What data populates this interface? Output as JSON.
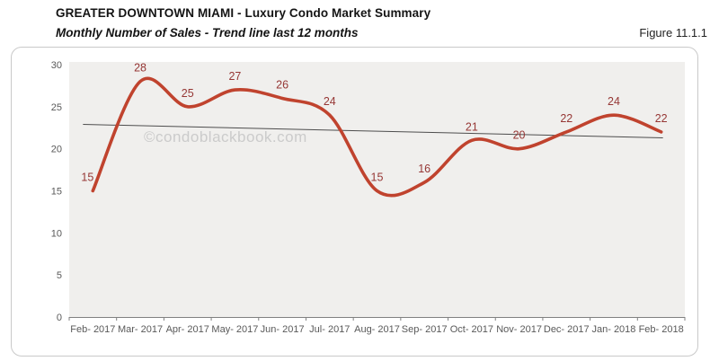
{
  "header": {
    "title": "GREATER DOWNTOWN MIAMI - Luxury Condo Market Summary",
    "subtitle": "Monthly Number of Sales - Trend line last 12 months",
    "figure_label": "Figure 11.1.1"
  },
  "watermark": "©condoblackbook.com",
  "chart_data": {
    "type": "line",
    "title": "Monthly Number of Sales - Trend line last 12 months",
    "categories": [
      "Feb- 2017",
      "Mar- 2017",
      "Apr- 2017",
      "May- 2017",
      "Jun- 2017",
      "Jul- 2017",
      "Aug- 2017",
      "Sep- 2017",
      "Oct- 2017",
      "Nov- 2017",
      "Dec- 2017",
      "Jan- 2018",
      "Feb- 2018"
    ],
    "series": [
      {
        "name": "Monthly Number of Sales",
        "type": "smooth-line",
        "values": [
          15,
          28,
          25,
          27,
          26,
          24,
          15,
          16,
          21,
          20,
          22,
          24,
          22
        ],
        "color": "#c0432e",
        "point_labels": true
      },
      {
        "name": "Trend line",
        "type": "linear-trend",
        "start": 22.9,
        "end": 21.3,
        "color": "#4d4d4d"
      }
    ],
    "xlabel": "",
    "ylabel": "",
    "ylim": [
      0,
      30
    ],
    "yticks": [
      0,
      5,
      10,
      15,
      20,
      25,
      30
    ],
    "grid": false,
    "legend": "none",
    "styles": {
      "plot_bg": "#f0efed",
      "axis_color": "#808080",
      "tick_text_color": "#595959",
      "data_label_color": "#963735",
      "watermark_color": "#cbcbcb",
      "box_border": "#c9c9c9"
    }
  }
}
